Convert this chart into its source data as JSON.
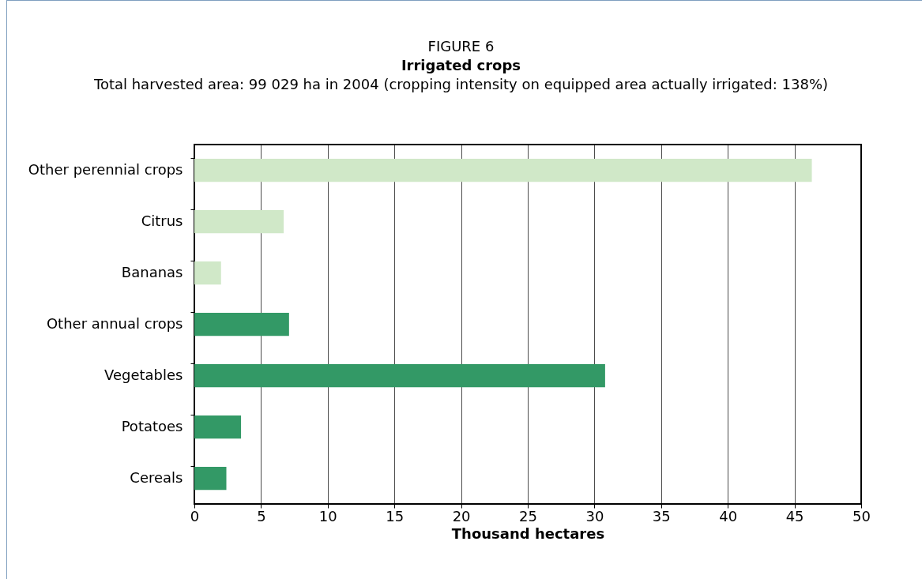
{
  "chart_data": {
    "type": "bar",
    "orientation": "horizontal",
    "annotations": [
      "FIGURE 6"
    ],
    "title": "Irrigated crops",
    "subtitle": "Total harvested area: 99 029 ha in 2004 (cropping intensity on equipped area actually irrigated: 138%)",
    "xlabel": "Thousand hectares",
    "categories": [
      "Other perennial crops",
      "Citrus",
      "Bananas",
      "Other annual crops",
      "Vegetables",
      "Potatoes",
      "Cereals"
    ],
    "values": [
      46.3,
      6.7,
      2.0,
      7.1,
      30.8,
      3.5,
      2.4
    ],
    "colors": [
      "#d0e8c8",
      "#d0e8c8",
      "#d0e8c8",
      "#339966",
      "#339966",
      "#339966",
      "#339966"
    ],
    "xlim": [
      0,
      50
    ],
    "xticks": [
      0,
      5,
      10,
      15,
      20,
      25,
      30,
      35,
      40,
      45,
      50
    ],
    "grid": "x"
  }
}
